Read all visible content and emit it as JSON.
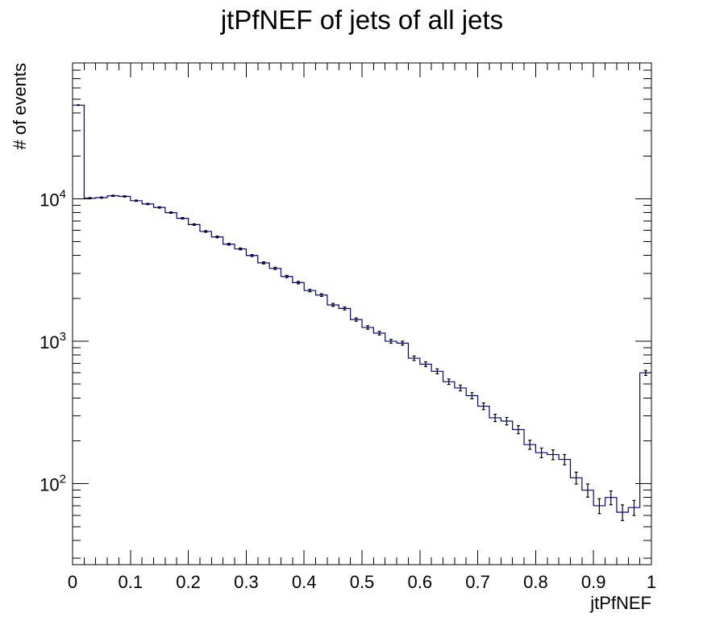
{
  "chart_data": {
    "type": "histogram",
    "title": "jtPfNEF of jets of all jets",
    "xlabel": "jtPfNEF",
    "ylabel": "# of events",
    "xlim": [
      0,
      1
    ],
    "ylim": [
      27,
      90000
    ],
    "log_y": true,
    "grid": false,
    "legend": "none",
    "line_color": "#000099",
    "error_bar_color": "#000000",
    "x_ticks": [
      "0",
      "0.1",
      "0.2",
      "0.3",
      "0.4",
      "0.5",
      "0.6",
      "0.7",
      "0.8",
      "0.9",
      "1"
    ],
    "y_ticks": [
      {
        "value": 100,
        "base": "10",
        "exp": "2"
      },
      {
        "value": 1000,
        "base": "10",
        "exp": "3"
      },
      {
        "value": 10000,
        "base": "10",
        "exp": "4"
      }
    ],
    "bins": {
      "count": 50,
      "low": 0,
      "high": 1,
      "values": [
        45500,
        10100,
        10200,
        10500,
        10400,
        9700,
        9200,
        8700,
        8000,
        7300,
        6600,
        5900,
        5400,
        4800,
        4450,
        4000,
        3550,
        3250,
        2850,
        2580,
        2270,
        2110,
        1800,
        1700,
        1420,
        1250,
        1140,
        1000,
        970,
        760,
        690,
        615,
        520,
        470,
        415,
        350,
        290,
        275,
        240,
        188,
        165,
        160,
        148,
        110,
        90,
        70,
        80,
        63,
        68,
        600
      ]
    }
  }
}
